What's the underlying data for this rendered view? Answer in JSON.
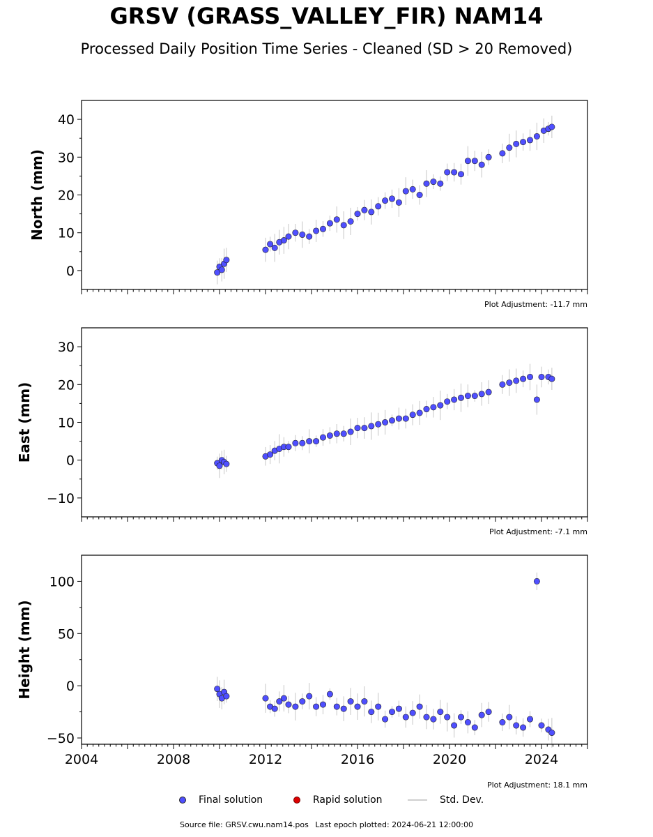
{
  "title": "GRSV (GRASS_VALLEY_FIR) NAM14",
  "subtitle": "Processed Daily Position Time Series - Cleaned (SD > 20 Removed)",
  "colors": {
    "final": "#4f4fff",
    "rapid": "#dd0000",
    "std": "#cfcfcf",
    "edge": "#222222"
  },
  "legend": {
    "final": "Final solution",
    "rapid": "Rapid solution",
    "std": "Std. Dev."
  },
  "footer": {
    "source": "Source file: GRSV.cwu.nam14.pos",
    "last_epoch": "Last epoch plotted: 2024-06-21 12:00:00"
  },
  "chart_data": [
    {
      "type": "scatter",
      "ylabel": "North (mm)",
      "adjustment": "Plot Adjustment: -11.7 mm",
      "xlim": [
        2004,
        2026
      ],
      "ylim": [
        -5,
        45
      ],
      "yticks": [
        0,
        10,
        20,
        30,
        40
      ],
      "ytick_labels": [
        "0",
        "10",
        "20",
        "30",
        "40"
      ],
      "series": [
        {
          "points": [
            [
              2009.9,
              -0.5
            ],
            [
              2010.0,
              1.0
            ],
            [
              2010.1,
              0.2
            ],
            [
              2010.2,
              1.8
            ],
            [
              2010.3,
              2.8
            ],
            [
              2012.0,
              5.5
            ],
            [
              2012.2,
              7.0
            ],
            [
              2012.4,
              6.0
            ],
            [
              2012.6,
              7.5
            ],
            [
              2012.8,
              8.0
            ],
            [
              2013.0,
              9.0
            ],
            [
              2013.3,
              10.0
            ],
            [
              2013.6,
              9.5
            ],
            [
              2013.9,
              9.0
            ],
            [
              2014.2,
              10.5
            ],
            [
              2014.5,
              11.0
            ],
            [
              2014.8,
              12.5
            ],
            [
              2015.1,
              13.5
            ],
            [
              2015.4,
              12.0
            ],
            [
              2015.7,
              13.0
            ],
            [
              2016.0,
              15.0
            ],
            [
              2016.3,
              16.0
            ],
            [
              2016.6,
              15.5
            ],
            [
              2016.9,
              17.0
            ],
            [
              2017.2,
              18.5
            ],
            [
              2017.5,
              19.0
            ],
            [
              2017.8,
              18.0
            ],
            [
              2018.1,
              21.0
            ],
            [
              2018.4,
              21.5
            ],
            [
              2018.7,
              20.0
            ],
            [
              2019.0,
              23.0
            ],
            [
              2019.3,
              23.5
            ],
            [
              2019.6,
              23.0
            ],
            [
              2019.9,
              26.0
            ],
            [
              2020.2,
              26.0
            ],
            [
              2020.5,
              25.5
            ],
            [
              2020.8,
              29.0
            ],
            [
              2021.1,
              29.0
            ],
            [
              2021.4,
              28.0
            ],
            [
              2021.7,
              30.0
            ],
            [
              2022.3,
              31.0
            ],
            [
              2022.6,
              32.5
            ],
            [
              2022.9,
              33.5
            ],
            [
              2023.2,
              34.0
            ],
            [
              2023.5,
              34.5
            ],
            [
              2023.8,
              35.5
            ],
            [
              2024.1,
              37.0
            ],
            [
              2024.3,
              37.5
            ],
            [
              2024.45,
              38.0
            ]
          ]
        }
      ]
    },
    {
      "type": "scatter",
      "ylabel": "East (mm)",
      "adjustment": "Plot Adjustment: -7.1 mm",
      "xlim": [
        2004,
        2026
      ],
      "ylim": [
        -15,
        35
      ],
      "yticks": [
        -10,
        0,
        10,
        20,
        30
      ],
      "ytick_labels": [
        "−10",
        "0",
        "10",
        "20",
        "30"
      ],
      "series": [
        {
          "points": [
            [
              2009.9,
              -0.8
            ],
            [
              2010.0,
              -1.5
            ],
            [
              2010.1,
              0.0
            ],
            [
              2010.2,
              -0.5
            ],
            [
              2010.3,
              -1.0
            ],
            [
              2012.0,
              1.0
            ],
            [
              2012.2,
              1.5
            ],
            [
              2012.4,
              2.5
            ],
            [
              2012.6,
              3.0
            ],
            [
              2012.8,
              3.5
            ],
            [
              2013.0,
              3.5
            ],
            [
              2013.3,
              4.5
            ],
            [
              2013.6,
              4.5
            ],
            [
              2013.9,
              5.0
            ],
            [
              2014.2,
              5.0
            ],
            [
              2014.5,
              6.0
            ],
            [
              2014.8,
              6.5
            ],
            [
              2015.1,
              7.0
            ],
            [
              2015.4,
              7.0
            ],
            [
              2015.7,
              7.5
            ],
            [
              2016.0,
              8.5
            ],
            [
              2016.3,
              8.5
            ],
            [
              2016.6,
              9.0
            ],
            [
              2016.9,
              9.5
            ],
            [
              2017.2,
              10.0
            ],
            [
              2017.5,
              10.5
            ],
            [
              2017.8,
              11.0
            ],
            [
              2018.1,
              11.0
            ],
            [
              2018.4,
              12.0
            ],
            [
              2018.7,
              12.5
            ],
            [
              2019.0,
              13.5
            ],
            [
              2019.3,
              14.0
            ],
            [
              2019.6,
              14.5
            ],
            [
              2019.9,
              15.5
            ],
            [
              2020.2,
              16.0
            ],
            [
              2020.5,
              16.5
            ],
            [
              2020.8,
              17.0
            ],
            [
              2021.1,
              17.0
            ],
            [
              2021.4,
              17.5
            ],
            [
              2021.7,
              18.0
            ],
            [
              2022.3,
              20.0
            ],
            [
              2022.6,
              20.5
            ],
            [
              2022.9,
              21.0
            ],
            [
              2023.2,
              21.5
            ],
            [
              2023.5,
              22.0
            ],
            [
              2023.8,
              16.0
            ],
            [
              2024.0,
              22.0
            ],
            [
              2024.3,
              22.0
            ],
            [
              2024.45,
              21.5
            ]
          ]
        }
      ]
    },
    {
      "type": "scatter",
      "ylabel": "Height (mm)",
      "adjustment": "Plot Adjustment: 18.1 mm",
      "xlim": [
        2004,
        2026
      ],
      "ylim": [
        -56,
        125
      ],
      "yticks": [
        -50,
        0,
        50,
        100
      ],
      "ytick_labels": [
        "−50",
        "0",
        "50",
        "100"
      ],
      "xticks": [
        2004,
        2008,
        2012,
        2016,
        2020,
        2024
      ],
      "xtick_labels": [
        "2004",
        "2008",
        "2012",
        "2016",
        "2020",
        "2024"
      ],
      "series": [
        {
          "points": [
            [
              2009.9,
              -3.0
            ],
            [
              2010.0,
              -8.0
            ],
            [
              2010.1,
              -12.0
            ],
            [
              2010.2,
              -6.0
            ],
            [
              2010.3,
              -10.0
            ],
            [
              2012.0,
              -12.0
            ],
            [
              2012.2,
              -20.0
            ],
            [
              2012.4,
              -22.0
            ],
            [
              2012.6,
              -15.0
            ],
            [
              2012.8,
              -12.0
            ],
            [
              2013.0,
              -18.0
            ],
            [
              2013.3,
              -20.0
            ],
            [
              2013.6,
              -15.0
            ],
            [
              2013.9,
              -10.0
            ],
            [
              2014.2,
              -20.0
            ],
            [
              2014.5,
              -18.0
            ],
            [
              2014.8,
              -8.0
            ],
            [
              2015.1,
              -20.0
            ],
            [
              2015.4,
              -22.0
            ],
            [
              2015.7,
              -15.0
            ],
            [
              2016.0,
              -20.0
            ],
            [
              2016.3,
              -15.0
            ],
            [
              2016.6,
              -25.0
            ],
            [
              2016.9,
              -20.0
            ],
            [
              2017.2,
              -32.0
            ],
            [
              2017.5,
              -25.0
            ],
            [
              2017.8,
              -22.0
            ],
            [
              2018.1,
              -30.0
            ],
            [
              2018.4,
              -26.0
            ],
            [
              2018.7,
              -20.0
            ],
            [
              2019.0,
              -30.0
            ],
            [
              2019.3,
              -32.0
            ],
            [
              2019.6,
              -25.0
            ],
            [
              2019.9,
              -30.0
            ],
            [
              2020.2,
              -38.0
            ],
            [
              2020.5,
              -30.0
            ],
            [
              2020.8,
              -35.0
            ],
            [
              2021.1,
              -40.0
            ],
            [
              2021.4,
              -28.0
            ],
            [
              2021.7,
              -25.0
            ],
            [
              2022.3,
              -35.0
            ],
            [
              2022.6,
              -30.0
            ],
            [
              2022.9,
              -38.0
            ],
            [
              2023.2,
              -40.0
            ],
            [
              2023.5,
              -32.0
            ],
            [
              2023.8,
              100.0
            ],
            [
              2024.0,
              -38.0
            ],
            [
              2024.3,
              -42.0
            ],
            [
              2024.45,
              -45.0
            ]
          ]
        }
      ]
    }
  ]
}
